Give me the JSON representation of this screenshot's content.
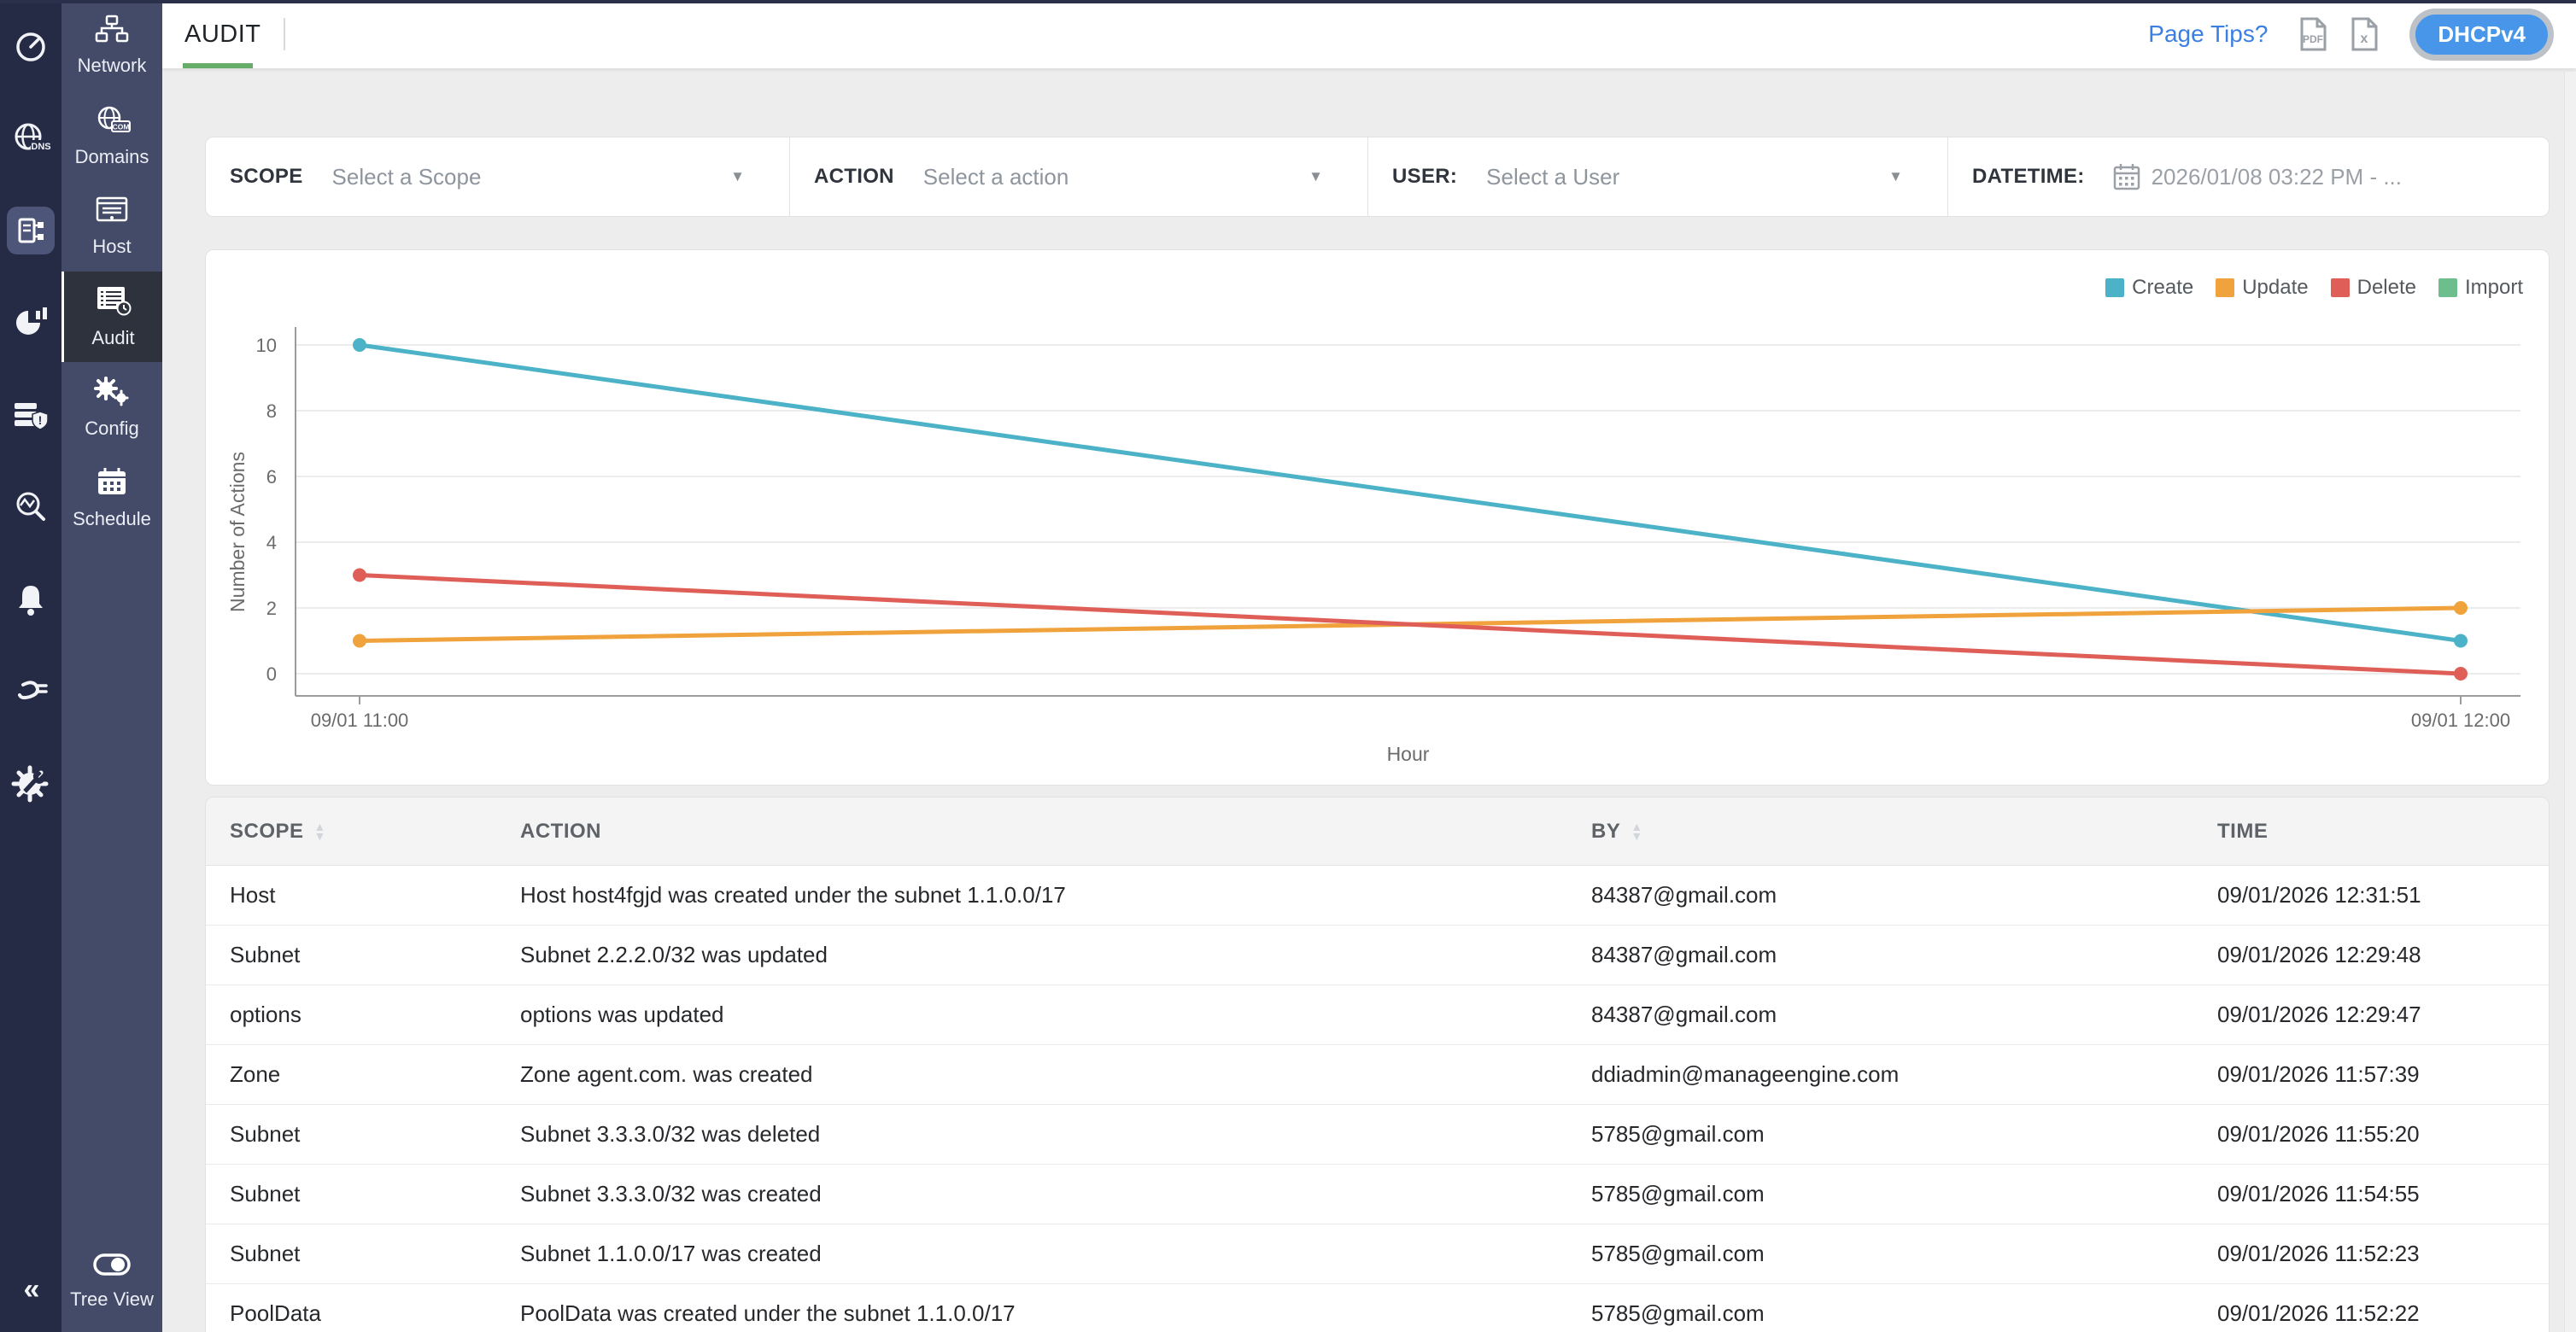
{
  "topbar": {
    "tab_label": "AUDIT",
    "page_tips_label": "Page Tips?",
    "export_icons": [
      "pdf-export-icon",
      "excel-export-icon"
    ],
    "protocol_button_label": "DHCPv4"
  },
  "sidebar": {
    "rail_icons": [
      "dashboard-gauge-icon",
      "dns-globe-icon",
      "ipam-document-icon",
      "reports-pie-icon",
      "server-security-icon",
      "discovery-search-icon",
      "alerts-bell-icon",
      "plugin-icon",
      "settings-wrench-icon",
      "collapse-chevrons-icon"
    ],
    "active_rail_icon": "ipam-document-icon",
    "menu": [
      {
        "label": "Network",
        "icon": "network-icon",
        "active": false
      },
      {
        "label": "Domains",
        "icon": "domains-icon",
        "active": false
      },
      {
        "label": "Host",
        "icon": "host-icon",
        "active": false
      },
      {
        "label": "Audit",
        "icon": "audit-icon",
        "active": true
      },
      {
        "label": "Config",
        "icon": "config-icon",
        "active": false
      },
      {
        "label": "Schedule",
        "icon": "schedule-icon",
        "active": false
      }
    ],
    "tree_view_label": "Tree View",
    "collapse_glyph": "«"
  },
  "filters": {
    "scope": {
      "label": "SCOPE",
      "placeholder": "Select a Scope"
    },
    "action": {
      "label": "ACTION",
      "placeholder": "Select a action"
    },
    "user": {
      "label": "USER:",
      "placeholder": "Select a User"
    },
    "datetime": {
      "label": "DATETIME:",
      "value": "2026/01/08 03:22 PM - ..."
    },
    "caret_glyph": "▼"
  },
  "chart_data": {
    "type": "line",
    "title": "",
    "xlabel": "Hour",
    "ylabel": "Number of Actions",
    "x": [
      "09/01 11:00",
      "09/01 12:00"
    ],
    "ylim": [
      0,
      10
    ],
    "yticks": [
      0,
      2,
      4,
      6,
      8,
      10
    ],
    "grid": true,
    "legend_position": "top-right",
    "series": [
      {
        "name": "Create",
        "color": "#4cb2c8",
        "values": [
          10,
          1
        ]
      },
      {
        "name": "Update",
        "color": "#f0a33c",
        "values": [
          1,
          2
        ]
      },
      {
        "name": "Delete",
        "color": "#df5f58",
        "values": [
          3,
          0
        ]
      },
      {
        "name": "Import",
        "color": "#6cbf8c",
        "values": []
      }
    ]
  },
  "table": {
    "columns": [
      {
        "label": "SCOPE",
        "sortable": true
      },
      {
        "label": "ACTION",
        "sortable": false
      },
      {
        "label": "BY",
        "sortable": true
      },
      {
        "label": "TIME",
        "sortable": false
      }
    ],
    "rows": [
      {
        "scope": "Host",
        "action": "Host host4fgjd was created under the subnet 1.1.0.0/17",
        "by": "84387@gmail.com",
        "time": "09/01/2026 12:31:51"
      },
      {
        "scope": "Subnet",
        "action": "Subnet 2.2.2.0/32 was updated",
        "by": "84387@gmail.com",
        "time": "09/01/2026 12:29:48"
      },
      {
        "scope": "options",
        "action": "options was updated",
        "by": "84387@gmail.com",
        "time": "09/01/2026 12:29:47"
      },
      {
        "scope": "Zone",
        "action": "Zone agent.com. was created",
        "by": "ddiadmin@manageengine.com",
        "time": "09/01/2026 11:57:39"
      },
      {
        "scope": "Subnet",
        "action": "Subnet 3.3.3.0/32 was deleted",
        "by": "5785@gmail.com",
        "time": "09/01/2026 11:55:20"
      },
      {
        "scope": "Subnet",
        "action": "Subnet 3.3.3.0/32 was created",
        "by": "5785@gmail.com",
        "time": "09/01/2026 11:54:55"
      },
      {
        "scope": "Subnet",
        "action": "Subnet 1.1.0.0/17 was created",
        "by": "5785@gmail.com",
        "time": "09/01/2026 11:52:23"
      },
      {
        "scope": "PoolData",
        "action": "PoolData was created under the subnet 1.1.0.0/17",
        "by": "5785@gmail.com",
        "time": "09/01/2026 11:52:22"
      }
    ]
  },
  "colors": {
    "accent_green": "#66ad6a",
    "link_blue": "#3b7fe3",
    "pill_blue": "#4796ea",
    "sidebar_dark": "#262b45",
    "sidebar_mid": "#434b69"
  }
}
